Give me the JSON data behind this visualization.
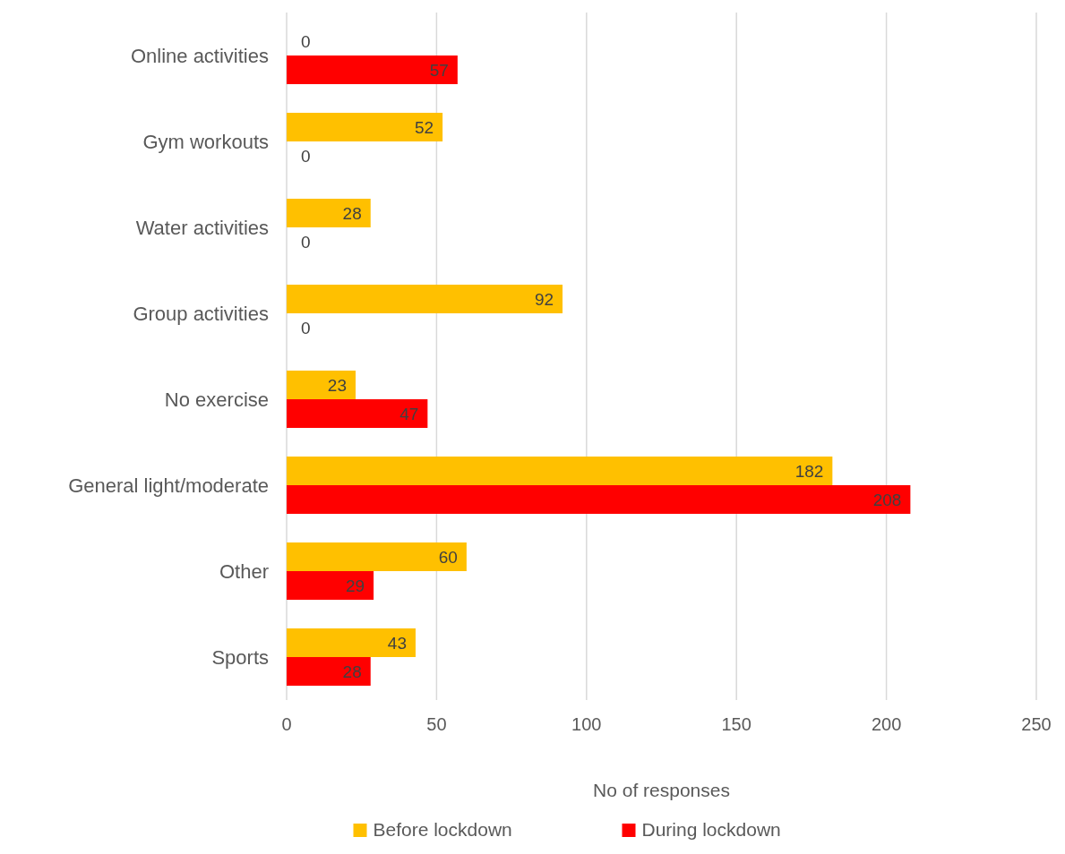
{
  "chart_data": {
    "type": "bar",
    "orientation": "horizontal",
    "xlabel": "No of responses",
    "categories": [
      "Online activities",
      "Gym workouts",
      "Water activities",
      "Group activities",
      "No exercise",
      "General light/moderate",
      "Other",
      "Sports"
    ],
    "series": [
      {
        "name": "Before lockdown",
        "color": "#ffc000",
        "values": [
          0,
          52,
          28,
          92,
          23,
          182,
          60,
          43
        ]
      },
      {
        "name": "During lockdown",
        "color": "#ff0000",
        "values": [
          57,
          0,
          0,
          0,
          47,
          208,
          29,
          28
        ]
      }
    ],
    "xlim": [
      0,
      250
    ],
    "xticks": [
      0,
      50,
      100,
      150,
      200,
      250
    ],
    "grid": "x",
    "data_labels": true,
    "legend": "bottom"
  }
}
